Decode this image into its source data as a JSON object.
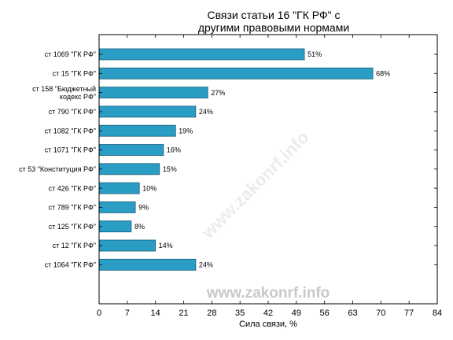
{
  "chart_data": {
    "type": "bar",
    "orientation": "horizontal",
    "title_lines": [
      "Связи статьи 16 \"ГК РФ\" с",
      "другими правовыми нормами"
    ],
    "xlabel": "Сила связи, %",
    "ylabel": "",
    "xlim": [
      0,
      84
    ],
    "xticks": [
      0,
      7,
      14,
      21,
      28,
      35,
      42,
      49,
      56,
      63,
      70,
      77,
      84
    ],
    "grid": false,
    "bar_color": "#2a9dc4",
    "bar_edge_color": "#1a5f7a",
    "categories": [
      [
        "ст 1069 \"ГК РФ\""
      ],
      [
        "ст 15 \"ГК РФ\""
      ],
      [
        "ст 158 \"Бюджетный",
        "кодекс РФ\""
      ],
      [
        "ст 790 \"ГК РФ\""
      ],
      [
        "ст 1082 \"ГК РФ\""
      ],
      [
        "ст 1071 \"ГК РФ\""
      ],
      [
        "ст 53 \"Конституция РФ\""
      ],
      [
        "ст 426 \"ГК РФ\""
      ],
      [
        "ст 789 \"ГК РФ\""
      ],
      [
        "ст 125 \"ГК РФ\""
      ],
      [
        "ст 12 \"ГК РФ\""
      ],
      [
        "ст 1064 \"ГК РФ\""
      ]
    ],
    "values": [
      51,
      68,
      27,
      24,
      19,
      16,
      15,
      10,
      9,
      8,
      14,
      24
    ],
    "value_labels": [
      "51%",
      "68%",
      "27%",
      "24%",
      "19%",
      "16%",
      "15%",
      "10%",
      "9%",
      "8%",
      "14%",
      "24%"
    ]
  },
  "watermark": {
    "text": "www.zakonrf.info",
    "color": "#c8c8c8"
  }
}
